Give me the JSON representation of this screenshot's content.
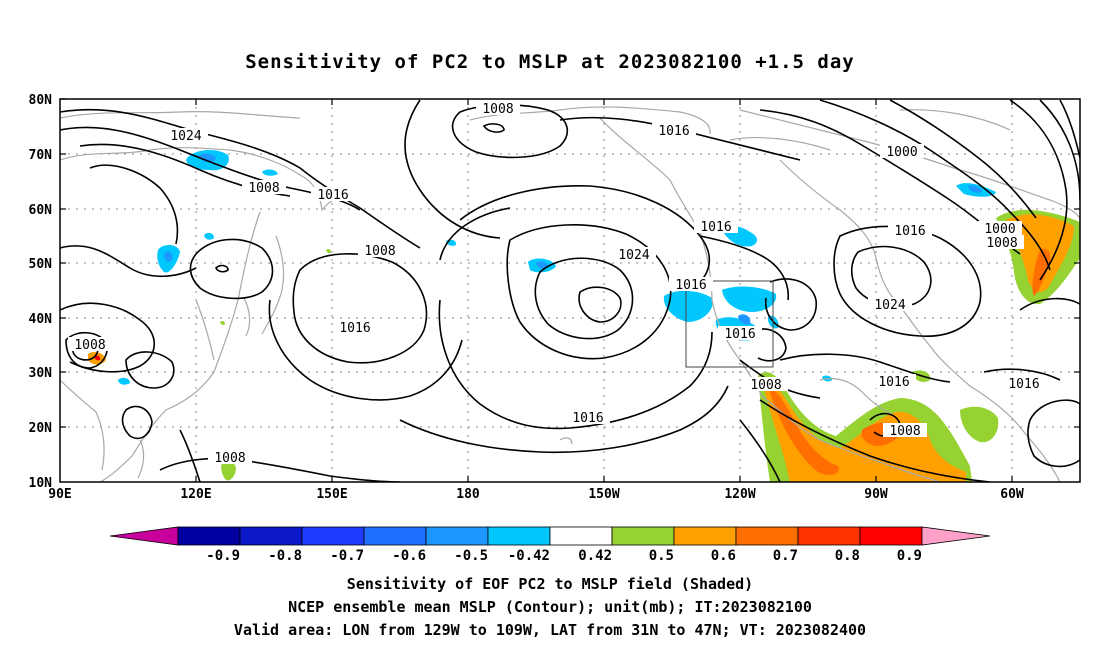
{
  "title": "Sensitivity of PC2 to MSLP at 2023082100 +1.5 day",
  "map": {
    "lat_labels": [
      "80N",
      "70N",
      "60N",
      "50N",
      "40N",
      "30N",
      "20N",
      "10N"
    ],
    "lon_labels": [
      "90E",
      "120E",
      "150E",
      "180",
      "150W",
      "120W",
      "90W",
      "60W"
    ],
    "contour_labels": [
      "1008",
      "1016",
      "1024",
      "1008",
      "1016",
      "1008",
      "1016",
      "1024",
      "1016",
      "1016",
      "1016",
      "1000",
      "1000",
      "1008",
      "1016",
      "1024",
      "1008",
      "1016",
      "1016",
      "1008",
      "1008",
      "1016"
    ],
    "valid_box": {
      "lon_from": "129W",
      "lon_to": "109W",
      "lat_from": "31N",
      "lat_to": "47N"
    }
  },
  "colorbar": {
    "labels": [
      "-0.9",
      "-0.8",
      "-0.7",
      "-0.6",
      "-0.5",
      "-0.42",
      "0.42",
      "0.5",
      "0.6",
      "0.7",
      "0.8",
      "0.9"
    ],
    "colors": [
      "#c8009c",
      "#0000a0",
      "#0a18c8",
      "#1e3cff",
      "#1e6eff",
      "#1e96ff",
      "#00c8ff",
      "#ffffff",
      "#96d232",
      "#ffa000",
      "#ff6e00",
      "#ff3200",
      "#ff0000",
      "#ffa0c8"
    ]
  },
  "captions": {
    "line1": "Sensitivity of EOF PC2 to MSLP field (Shaded)",
    "line2": "NCEP ensemble mean MSLP (Contour); unit(mb); IT:2023082100",
    "line3": "Valid area: LON from 129W to 109W, LAT from 31N to 47N; VT: 2023082400"
  }
}
